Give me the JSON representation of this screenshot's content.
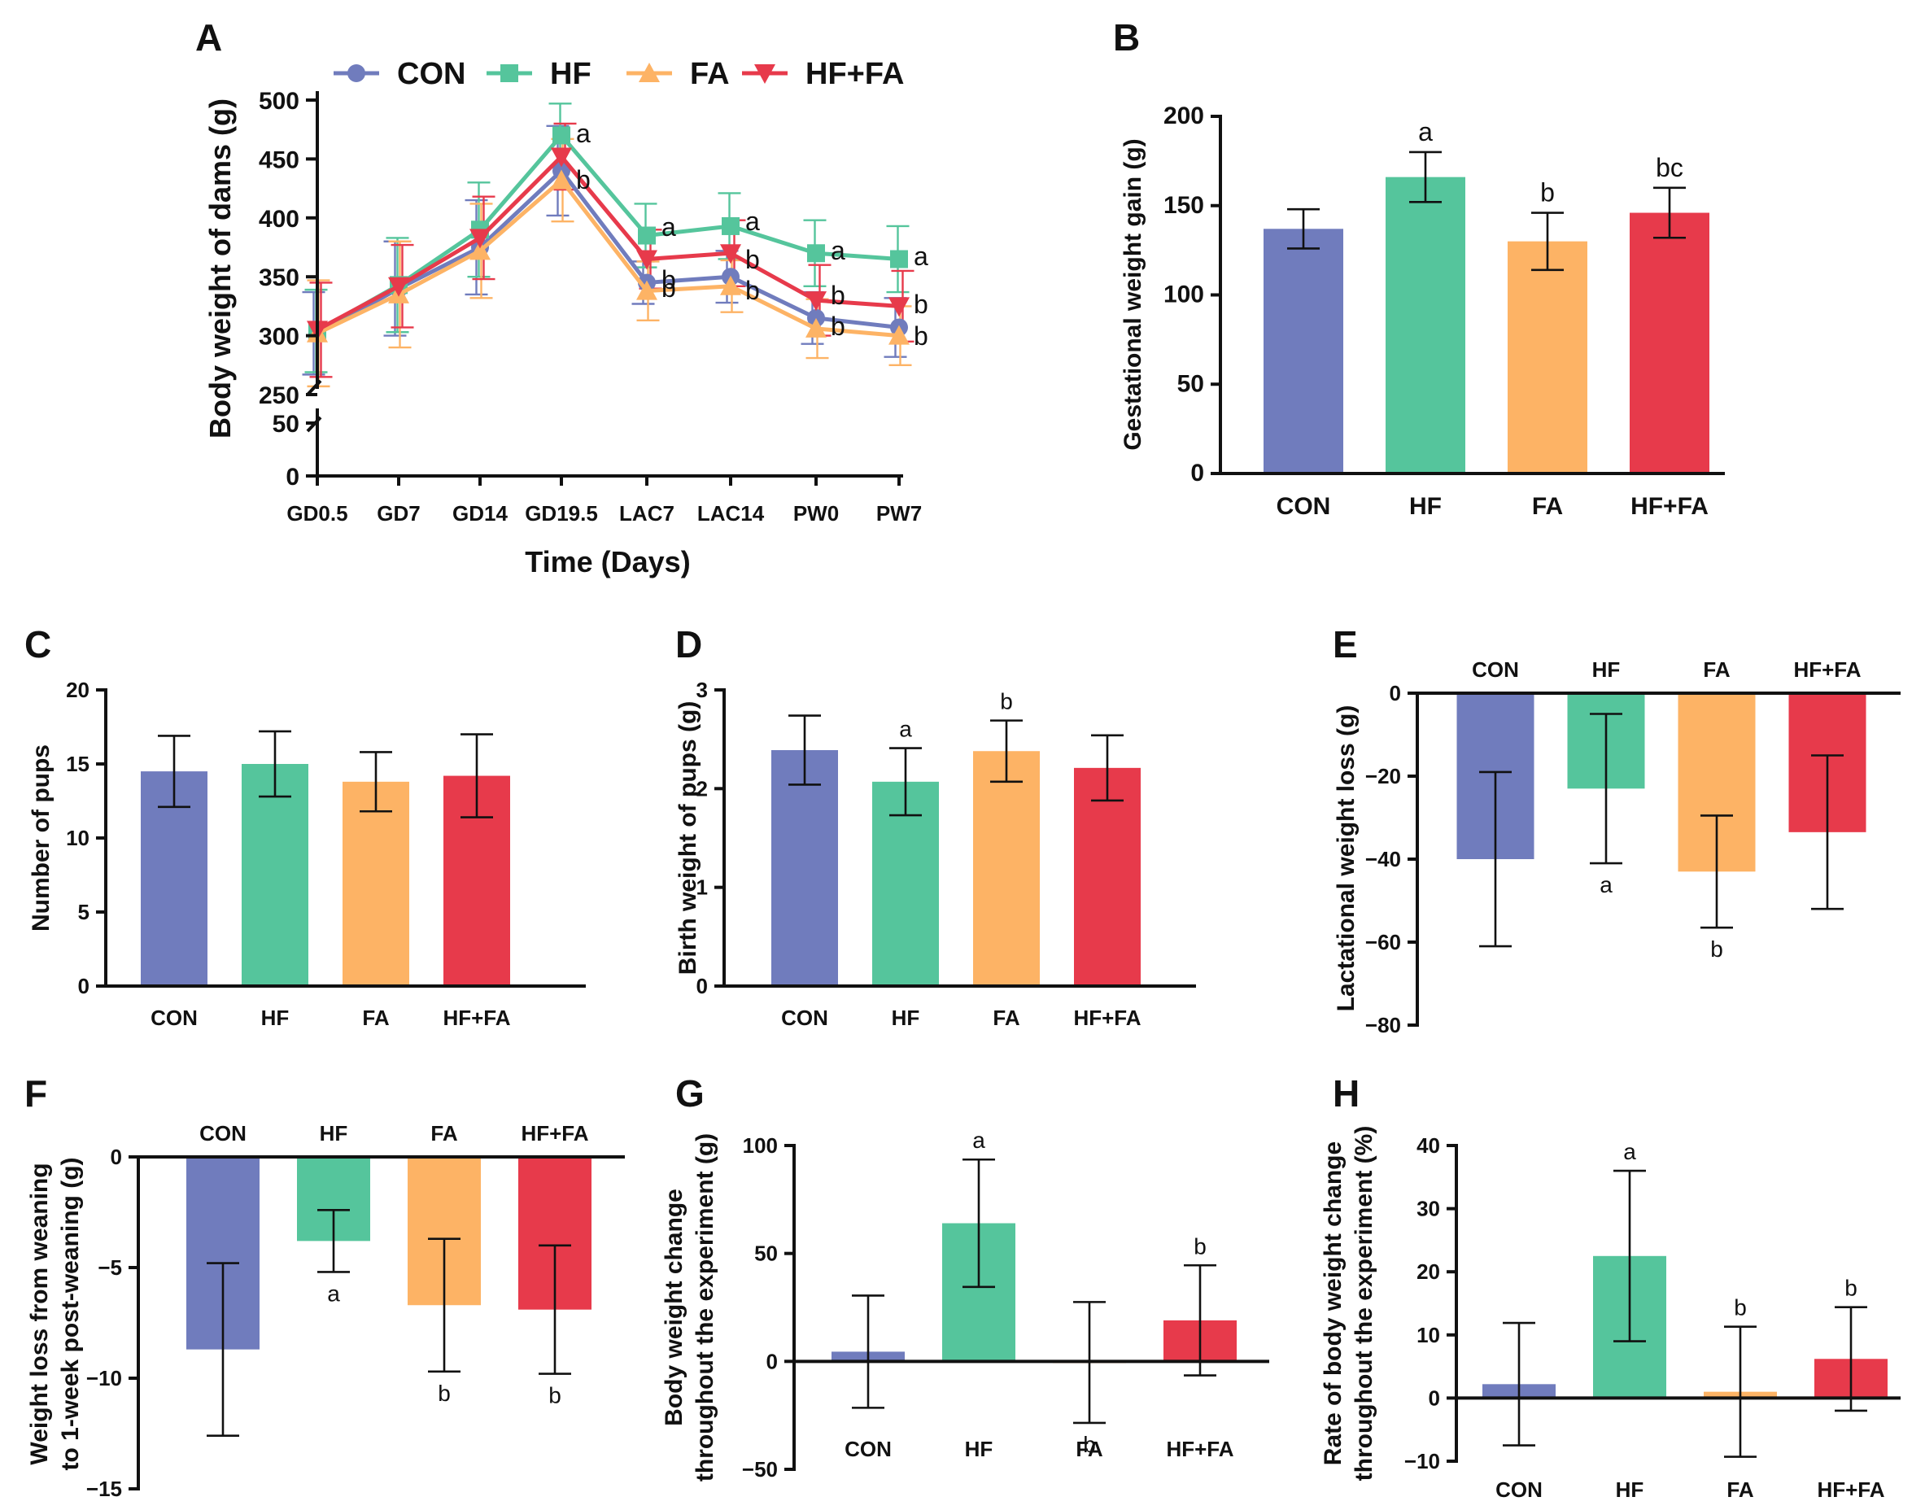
{
  "colors": {
    "CON": "#707cbd",
    "HF": "#55c59c",
    "FA": "#fdb365",
    "HF+FA": "#e73a4b"
  },
  "chart_data": [
    {
      "panel": "A",
      "type": "line",
      "xlabel": "Time (Days)",
      "ylabel": "Body weight of dams (g)",
      "categories": [
        "GD0.5",
        "GD7",
        "GD14",
        "GD19.5",
        "LAC7",
        "LAC14",
        "PW0",
        "PW7"
      ],
      "yticks": [
        0,
        50,
        250,
        300,
        350,
        400,
        450,
        500
      ],
      "legend": [
        "CON",
        "HF",
        "FA",
        "HF+FA"
      ],
      "series": [
        {
          "name": "CON",
          "marker": "circle",
          "values": [
            302,
            340,
            375,
            440,
            345,
            350,
            315,
            307
          ],
          "errors": [
            35,
            40,
            40,
            38,
            18,
            22,
            22,
            25
          ]
        },
        {
          "name": "HF",
          "marker": "square",
          "values": [
            304,
            343,
            390,
            470,
            385,
            393,
            370,
            365
          ],
          "errors": [
            35,
            40,
            40,
            27,
            27,
            28,
            28,
            28
          ]
        },
        {
          "name": "FA",
          "marker": "triangle-up",
          "values": [
            302,
            335,
            372,
            432,
            338,
            342,
            306,
            300
          ],
          "errors": [
            45,
            45,
            40,
            35,
            25,
            22,
            25,
            25
          ]
        },
        {
          "name": "HF+FA",
          "marker": "triangle-down",
          "values": [
            305,
            342,
            383,
            452,
            365,
            370,
            330,
            325
          ],
          "errors": [
            40,
            35,
            35,
            28,
            25,
            28,
            30,
            30
          ]
        }
      ],
      "annotations": [
        {
          "x": "GD19.5",
          "text": "a"
        },
        {
          "x": "GD19.5",
          "text": "b"
        },
        {
          "x": "LAC7",
          "text": "a"
        },
        {
          "x": "LAC7",
          "text": "b"
        },
        {
          "x": "LAC7",
          "text": "b"
        },
        {
          "x": "LAC14",
          "text": "a"
        },
        {
          "x": "LAC14",
          "text": "b"
        },
        {
          "x": "LAC14",
          "text": "b"
        },
        {
          "x": "PW0",
          "text": "a"
        },
        {
          "x": "PW0",
          "text": "b"
        },
        {
          "x": "PW0",
          "text": "b"
        },
        {
          "x": "PW7",
          "text": "a"
        },
        {
          "x": "PW7",
          "text": "b"
        },
        {
          "x": "PW7",
          "text": "b"
        }
      ]
    },
    {
      "panel": "B",
      "type": "bar",
      "ylabel": "Gestational weight gain (g)",
      "categories": [
        "CON",
        "HF",
        "FA",
        "HF+FA"
      ],
      "values": [
        137,
        166,
        130,
        146
      ],
      "errors": [
        11,
        14,
        16,
        14
      ],
      "labels": [
        "",
        "a",
        "b",
        "bc"
      ],
      "ylim": [
        0,
        200
      ],
      "yticks": [
        0,
        50,
        100,
        150,
        200
      ]
    },
    {
      "panel": "C",
      "type": "bar",
      "ylabel": "Number of pups",
      "categories": [
        "CON",
        "HF",
        "FA",
        "HF+FA"
      ],
      "values": [
        14.5,
        15.0,
        13.8,
        14.2
      ],
      "errors": [
        2.4,
        2.2,
        2.0,
        2.8
      ],
      "labels": [
        "",
        "",
        "",
        ""
      ],
      "ylim": [
        0,
        20
      ],
      "yticks": [
        0,
        5,
        10,
        15,
        20
      ]
    },
    {
      "panel": "D",
      "type": "bar",
      "ylabel": "Birth weight of pups (g)",
      "categories": [
        "CON",
        "HF",
        "FA",
        "HF+FA"
      ],
      "values": [
        2.39,
        2.07,
        2.38,
        2.21
      ],
      "errors": [
        0.35,
        0.34,
        0.31,
        0.33
      ],
      "labels": [
        "",
        "a",
        "b",
        ""
      ],
      "ylim": [
        0,
        3
      ],
      "yticks": [
        0,
        1,
        2,
        3
      ]
    },
    {
      "panel": "E",
      "type": "bar",
      "ylabel": "Lactational weight loss (g)",
      "categories": [
        "CON",
        "HF",
        "FA",
        "HF+FA"
      ],
      "values": [
        -40,
        -23,
        -43,
        -33.5
      ],
      "errors": [
        21,
        18,
        13.5,
        18.5
      ],
      "labels": [
        "",
        "a",
        "b",
        ""
      ],
      "ylim": [
        -80,
        0
      ],
      "yticks": [
        -80,
        -60,
        -40,
        -20,
        0
      ]
    },
    {
      "panel": "F",
      "type": "bar",
      "ylabel": "Weight loss from weaning to 1-week post-weaning (g)",
      "categories": [
        "CON",
        "HF",
        "FA",
        "HF+FA"
      ],
      "values": [
        -8.7,
        -3.8,
        -6.7,
        -6.9
      ],
      "errors": [
        3.9,
        1.4,
        3.0,
        2.9
      ],
      "labels": [
        "",
        "a",
        "b",
        "b"
      ],
      "ylim": [
        -15,
        0
      ],
      "yticks": [
        -15,
        -10,
        -5,
        0
      ]
    },
    {
      "panel": "G",
      "type": "bar",
      "ylabel": "Body weight change throughout the experiment (g)",
      "categories": [
        "CON",
        "HF",
        "FA",
        "HF+FA"
      ],
      "values": [
        4.5,
        64,
        -0.5,
        19
      ],
      "errors": [
        26,
        29.5,
        28,
        25.5
      ],
      "labels": [
        "",
        "a",
        "b",
        "b"
      ],
      "ylim": [
        -50,
        100
      ],
      "yticks": [
        -50,
        0,
        50,
        100
      ]
    },
    {
      "panel": "H",
      "type": "bar",
      "ylabel": "Rate of body weight change throughout the experiment (%)",
      "categories": [
        "CON",
        "HF",
        "FA",
        "HF+FA"
      ],
      "values": [
        2.2,
        22.5,
        1.0,
        6.2
      ],
      "errors": [
        9.7,
        13.5,
        10.3,
        8.2
      ],
      "labels": [
        "",
        "a",
        "b",
        "b"
      ],
      "ylim": [
        -10,
        40
      ],
      "yticks": [
        -10,
        0,
        10,
        20,
        30,
        40
      ]
    }
  ]
}
